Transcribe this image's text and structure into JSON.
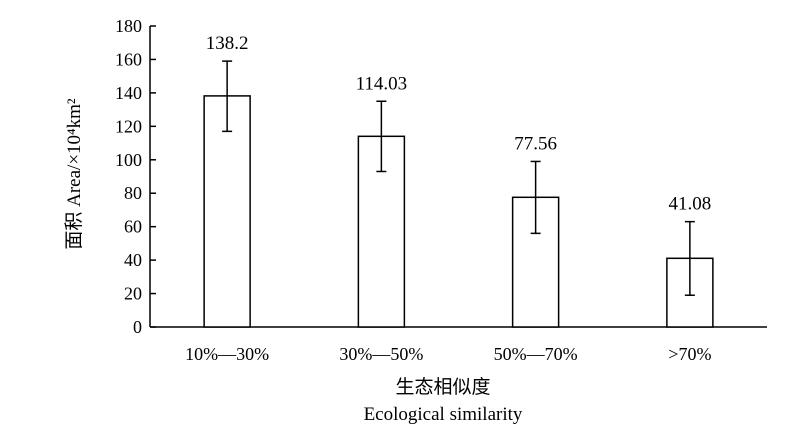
{
  "chart_data": {
    "type": "bar",
    "categories": [
      "10%—30%",
      "30%—50%",
      "50%—70%",
      ">70%"
    ],
    "values": [
      138.2,
      114.03,
      77.56,
      41.08
    ],
    "error_upper": [
      159,
      135,
      99,
      63
    ],
    "error_lower": [
      117,
      93,
      56,
      19
    ],
    "data_labels": [
      "138.2",
      "114.03",
      "77.56",
      "41.08"
    ],
    "ylabel": "面积 Area/×10⁴km²",
    "xlabel_cn": "生态相似度",
    "xlabel_en": "Ecological similarity",
    "ylim": [
      0,
      180
    ],
    "yticks": [
      0,
      20,
      40,
      60,
      80,
      100,
      120,
      140,
      160,
      180
    ],
    "grid": false,
    "bar_fill": "#ffffff",
    "bar_stroke": "#000000"
  }
}
